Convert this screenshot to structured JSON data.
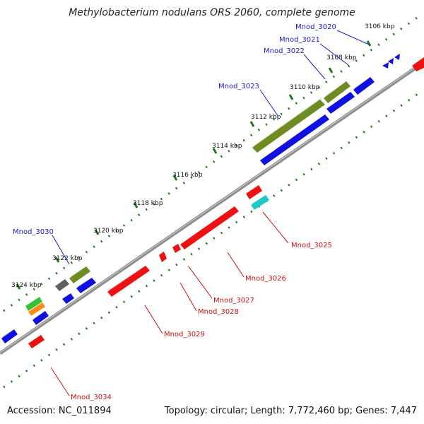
{
  "title": "Methylobacterium nodulans ORS 2060, complete genome",
  "accession": "Accession: NC_011894",
  "summary": "Topology: circular; Length: 7,772,460 bp; Genes: 7,447",
  "colors": {
    "backbone": "#8c8c8c",
    "tick": "#1a7a1a",
    "label_forward": "#1a1acc",
    "label_reverse": "#cc1111",
    "blue": "#1010e0",
    "olive": "#6e8c23",
    "red": "#ee1111",
    "cyan": "#1fc8c8",
    "gray": "#606060",
    "green": "#36c236",
    "orange": "#ff8c1a"
  },
  "ticks": [
    {
      "label": "3106 kbp",
      "kbp": 3106
    },
    {
      "label": "3108 kbp",
      "kbp": 3108
    },
    {
      "label": "3110 kbp",
      "kbp": 3110
    },
    {
      "label": "3112 kbp",
      "kbp": 3112
    },
    {
      "label": "3114 kbp",
      "kbp": 3114
    },
    {
      "label": "3116 kbp",
      "kbp": 3116
    },
    {
      "label": "3118 kbp",
      "kbp": 3118
    },
    {
      "label": "3120 kbp",
      "kbp": 3120
    },
    {
      "label": "3122 kbp",
      "kbp": 3122
    },
    {
      "label": "3124 kbp",
      "kbp": 3124
    }
  ],
  "gene_labels": [
    {
      "text": "Mnod_3020",
      "strand": "forward"
    },
    {
      "text": "Mnod_3021",
      "strand": "forward"
    },
    {
      "text": "Mnod_3022",
      "strand": "forward"
    },
    {
      "text": "Mnod_3023",
      "strand": "forward"
    },
    {
      "text": "Mnod_3030",
      "strand": "forward"
    },
    {
      "text": "Mnod_3025",
      "strand": "reverse"
    },
    {
      "text": "Mnod_3026",
      "strand": "reverse"
    },
    {
      "text": "Mnod_3027",
      "strand": "reverse"
    },
    {
      "text": "Mnod_3028",
      "strand": "reverse"
    },
    {
      "text": "Mnod_3029",
      "strand": "reverse"
    },
    {
      "text": "Mnod_3034",
      "strand": "reverse"
    }
  ]
}
